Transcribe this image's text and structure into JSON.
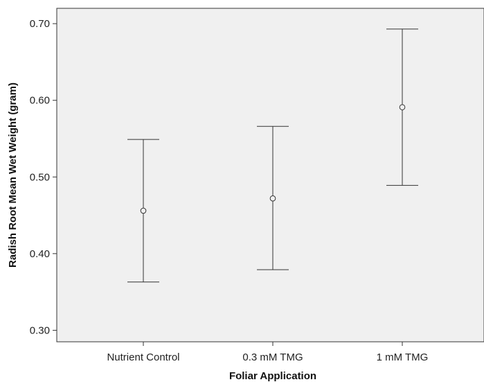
{
  "chart_data": {
    "type": "errorbar",
    "title": "",
    "xlabel": "Foliar Application",
    "ylabel": "Radish Root Mean Wet Weight (gram)",
    "categories": [
      "Nutrient Control",
      "0.3 mM TMG",
      "1 mM TMG"
    ],
    "means": [
      0.456,
      0.472,
      0.591
    ],
    "lower": [
      0.363,
      0.379,
      0.489
    ],
    "upper": [
      0.549,
      0.566,
      0.693
    ],
    "ylim": [
      0.285,
      0.72
    ],
    "yticks": [
      "0.30",
      "0.40",
      "0.50",
      "0.60",
      "0.70"
    ],
    "grid": false,
    "colors": {
      "plot_background": "#f0f0f0",
      "line": "#333333"
    }
  }
}
